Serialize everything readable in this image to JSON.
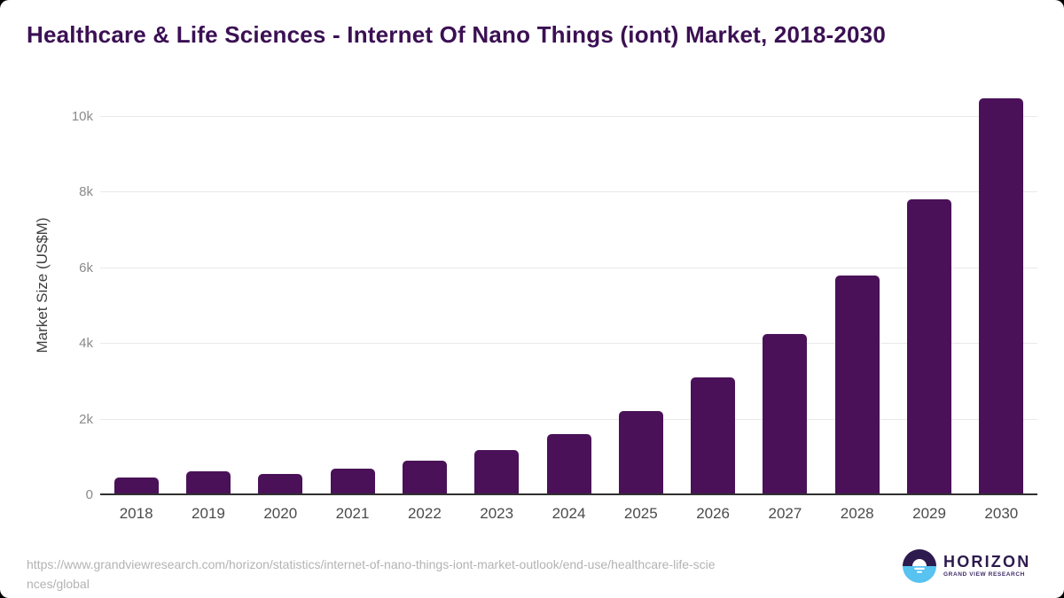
{
  "title": "Healthcare & Life Sciences - Internet Of Nano Things (iont) Market, 2018-2030",
  "chart_data": {
    "type": "bar",
    "title": "Healthcare & Life Sciences - Internet Of Nano Things (iont) Market, 2018-2030",
    "categories": [
      "2018",
      "2019",
      "2020",
      "2021",
      "2022",
      "2023",
      "2024",
      "2025",
      "2026",
      "2027",
      "2028",
      "2029",
      "2030"
    ],
    "values": [
      450,
      600,
      550,
      690,
      880,
      1170,
      1590,
      2200,
      3080,
      4240,
      5790,
      7810,
      10480
    ],
    "xlabel": "",
    "ylabel": "Market Size (US$M)",
    "ylim": [
      0,
      10700
    ],
    "yticks": [
      {
        "v": 0,
        "label": "0"
      },
      {
        "v": 2000,
        "label": "2k"
      },
      {
        "v": 4000,
        "label": "4k"
      },
      {
        "v": 6000,
        "label": "6k"
      },
      {
        "v": 8000,
        "label": "8k"
      },
      {
        "v": 10000,
        "label": "10k"
      }
    ],
    "grid": true,
    "legend": "none",
    "bar_color": "#4a1158"
  },
  "footer": {
    "source_lines": [
      "https://www.grandviewresearch.com/horizon/statistics/internet-of-nano-things-iont-market-outlook/end-use/healthcare-life-scie",
      "nces/global"
    ],
    "logo": {
      "icon": "horizon-sunrise-icon",
      "brand": "HORIZON",
      "sub": "GRAND VIEW RESEARCH"
    }
  },
  "colors": {
    "bar": "#4a1158",
    "title": "#3b1053",
    "grid": "#e9e9e9",
    "baseline": "#303030",
    "tick_text": "#8a8a8a",
    "axis_text": "#4b4b4b",
    "source_text": "#b3b3b3",
    "logo_purple": "#2d1a4e",
    "logo_blue": "#58c2f0"
  }
}
